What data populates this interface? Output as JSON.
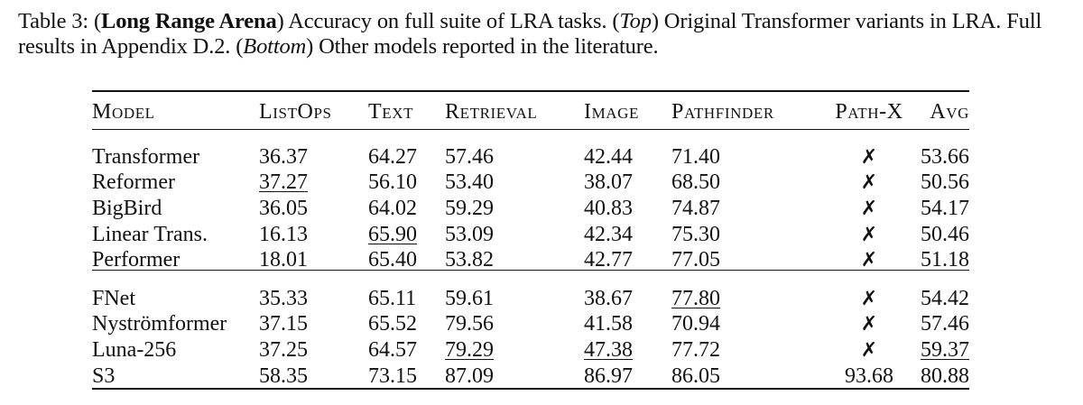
{
  "caption": {
    "prefix": "Table 3: (",
    "bold_title": "Long Range Arena",
    "part1": ") Accuracy on full suite of LRA tasks. (",
    "top_label": "Top",
    "part2": ") Original Transformer variants in LRA. Full results in Appendix D.2. (",
    "bottom_label": "Bottom",
    "part3": ") Other models reported in the literature."
  },
  "table": {
    "headers": [
      "Model",
      "ListOps",
      "Text",
      "Retrieval",
      "Image",
      "Pathfinder",
      "Path-X",
      "Avg"
    ],
    "top_rows": [
      [
        "Transformer",
        "36.37",
        "64.27",
        "57.46",
        "42.44",
        "71.40",
        "✗",
        "53.66"
      ],
      [
        "Reformer",
        "37.27",
        "56.10",
        "53.40",
        "38.07",
        "68.50",
        "✗",
        "50.56"
      ],
      [
        "BigBird",
        "36.05",
        "64.02",
        "59.29",
        "40.83",
        "74.87",
        "✗",
        "54.17"
      ],
      [
        "Linear Trans.",
        "16.13",
        "65.90",
        "53.09",
        "42.34",
        "75.30",
        "✗",
        "50.46"
      ],
      [
        "Performer",
        "18.01",
        "65.40",
        "53.82",
        "42.77",
        "77.05",
        "✗",
        "51.18"
      ]
    ],
    "bottom_rows": [
      [
        "FNet",
        "35.33",
        "65.11",
        "59.61",
        "38.67",
        "77.80",
        "✗",
        "54.42"
      ],
      [
        "Nyströmformer",
        "37.15",
        "65.52",
        "79.56",
        "41.58",
        "70.94",
        "✗",
        "57.46"
      ],
      [
        "Luna-256",
        "37.25",
        "64.57",
        "79.29",
        "47.38",
        "77.72",
        "✗",
        "59.37"
      ],
      [
        "S3",
        "58.35",
        "73.15",
        "87.09",
        "86.97",
        "86.05",
        "93.68",
        "80.88"
      ]
    ]
  }
}
